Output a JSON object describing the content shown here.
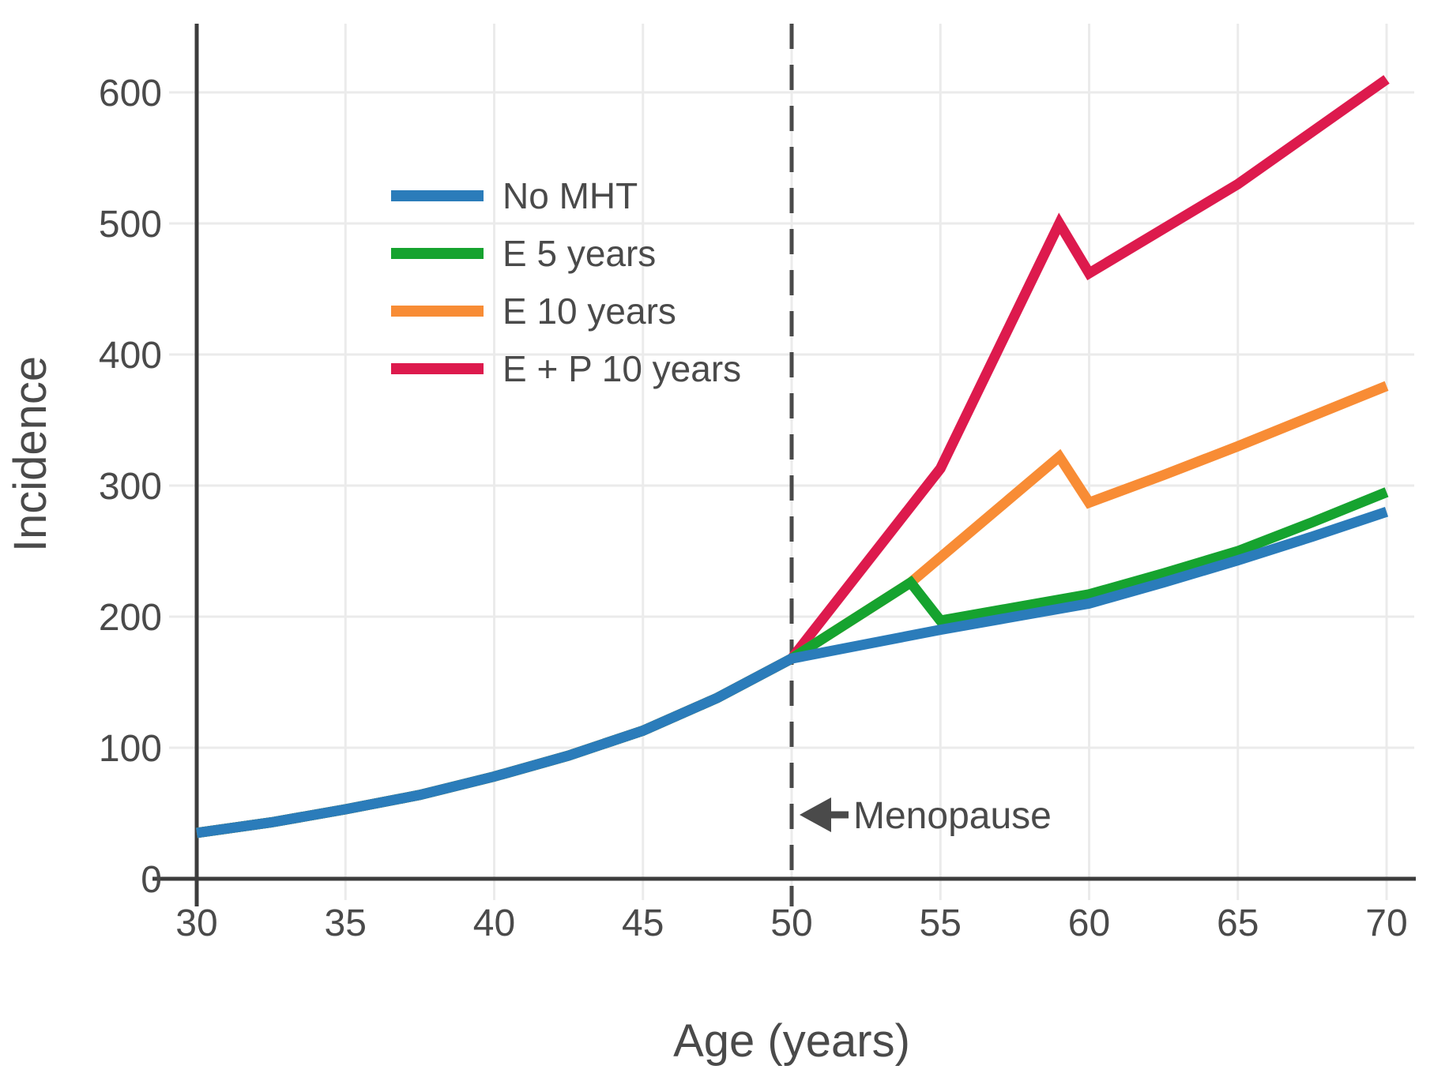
{
  "chart_data": {
    "type": "line",
    "title": "",
    "xlabel": "Age (years)",
    "ylabel": "Incidence",
    "x_ticks": [
      30,
      35,
      40,
      45,
      50,
      55,
      60,
      65,
      70
    ],
    "y_ticks": [
      0,
      100,
      200,
      300,
      400,
      500,
      600
    ],
    "xlim": [
      30,
      71
    ],
    "ylim": [
      0,
      652
    ],
    "grid": true,
    "legend_position": "upper-left-inside",
    "annotation": {
      "label": "Menopause",
      "x": 50,
      "arrow_direction": "left",
      "y_value": 49
    },
    "shared_points_before_menopause": [
      [
        30,
        35
      ],
      [
        32.5,
        43
      ],
      [
        35,
        53
      ],
      [
        37.5,
        64
      ],
      [
        40,
        78
      ],
      [
        42.5,
        94
      ],
      [
        45,
        113
      ],
      [
        47.5,
        138
      ],
      [
        50,
        168
      ]
    ],
    "series": [
      {
        "name": "No MHT",
        "color": "#2b7cba",
        "points_after_50": [
          [
            52.5,
            179
          ],
          [
            55,
            190
          ],
          [
            57.5,
            200
          ],
          [
            60,
            210
          ],
          [
            62.5,
            226
          ],
          [
            65,
            243
          ],
          [
            67.5,
            261
          ],
          [
            70,
            280
          ]
        ]
      },
      {
        "name": "E 5 years",
        "color": "#16a32f",
        "points_after_50": [
          [
            54,
            226
          ],
          [
            55,
            197
          ],
          [
            57.5,
            207
          ],
          [
            60,
            217
          ],
          [
            62.5,
            233
          ],
          [
            65,
            250
          ],
          [
            67.5,
            272
          ],
          [
            70,
            295
          ]
        ]
      },
      {
        "name": "E 10 years",
        "color": "#f88c35",
        "points_after_50": [
          [
            54,
            226
          ],
          [
            59,
            322
          ],
          [
            60,
            287
          ],
          [
            62.5,
            308
          ],
          [
            65,
            330
          ],
          [
            70,
            376
          ]
        ]
      },
      {
        "name": "E + P 10 years",
        "color": "#dd1a4d",
        "points_after_50": [
          [
            55,
            313
          ],
          [
            59,
            500
          ],
          [
            60,
            462
          ],
          [
            65,
            530
          ],
          [
            70,
            610
          ]
        ]
      }
    ]
  },
  "style": {
    "grid_color": "#ebebeb",
    "axis_color": "#3c3c3c",
    "text_color": "#4a4a4a",
    "dashed_line_color": "#4a4a4a",
    "background": "#ffffff"
  }
}
